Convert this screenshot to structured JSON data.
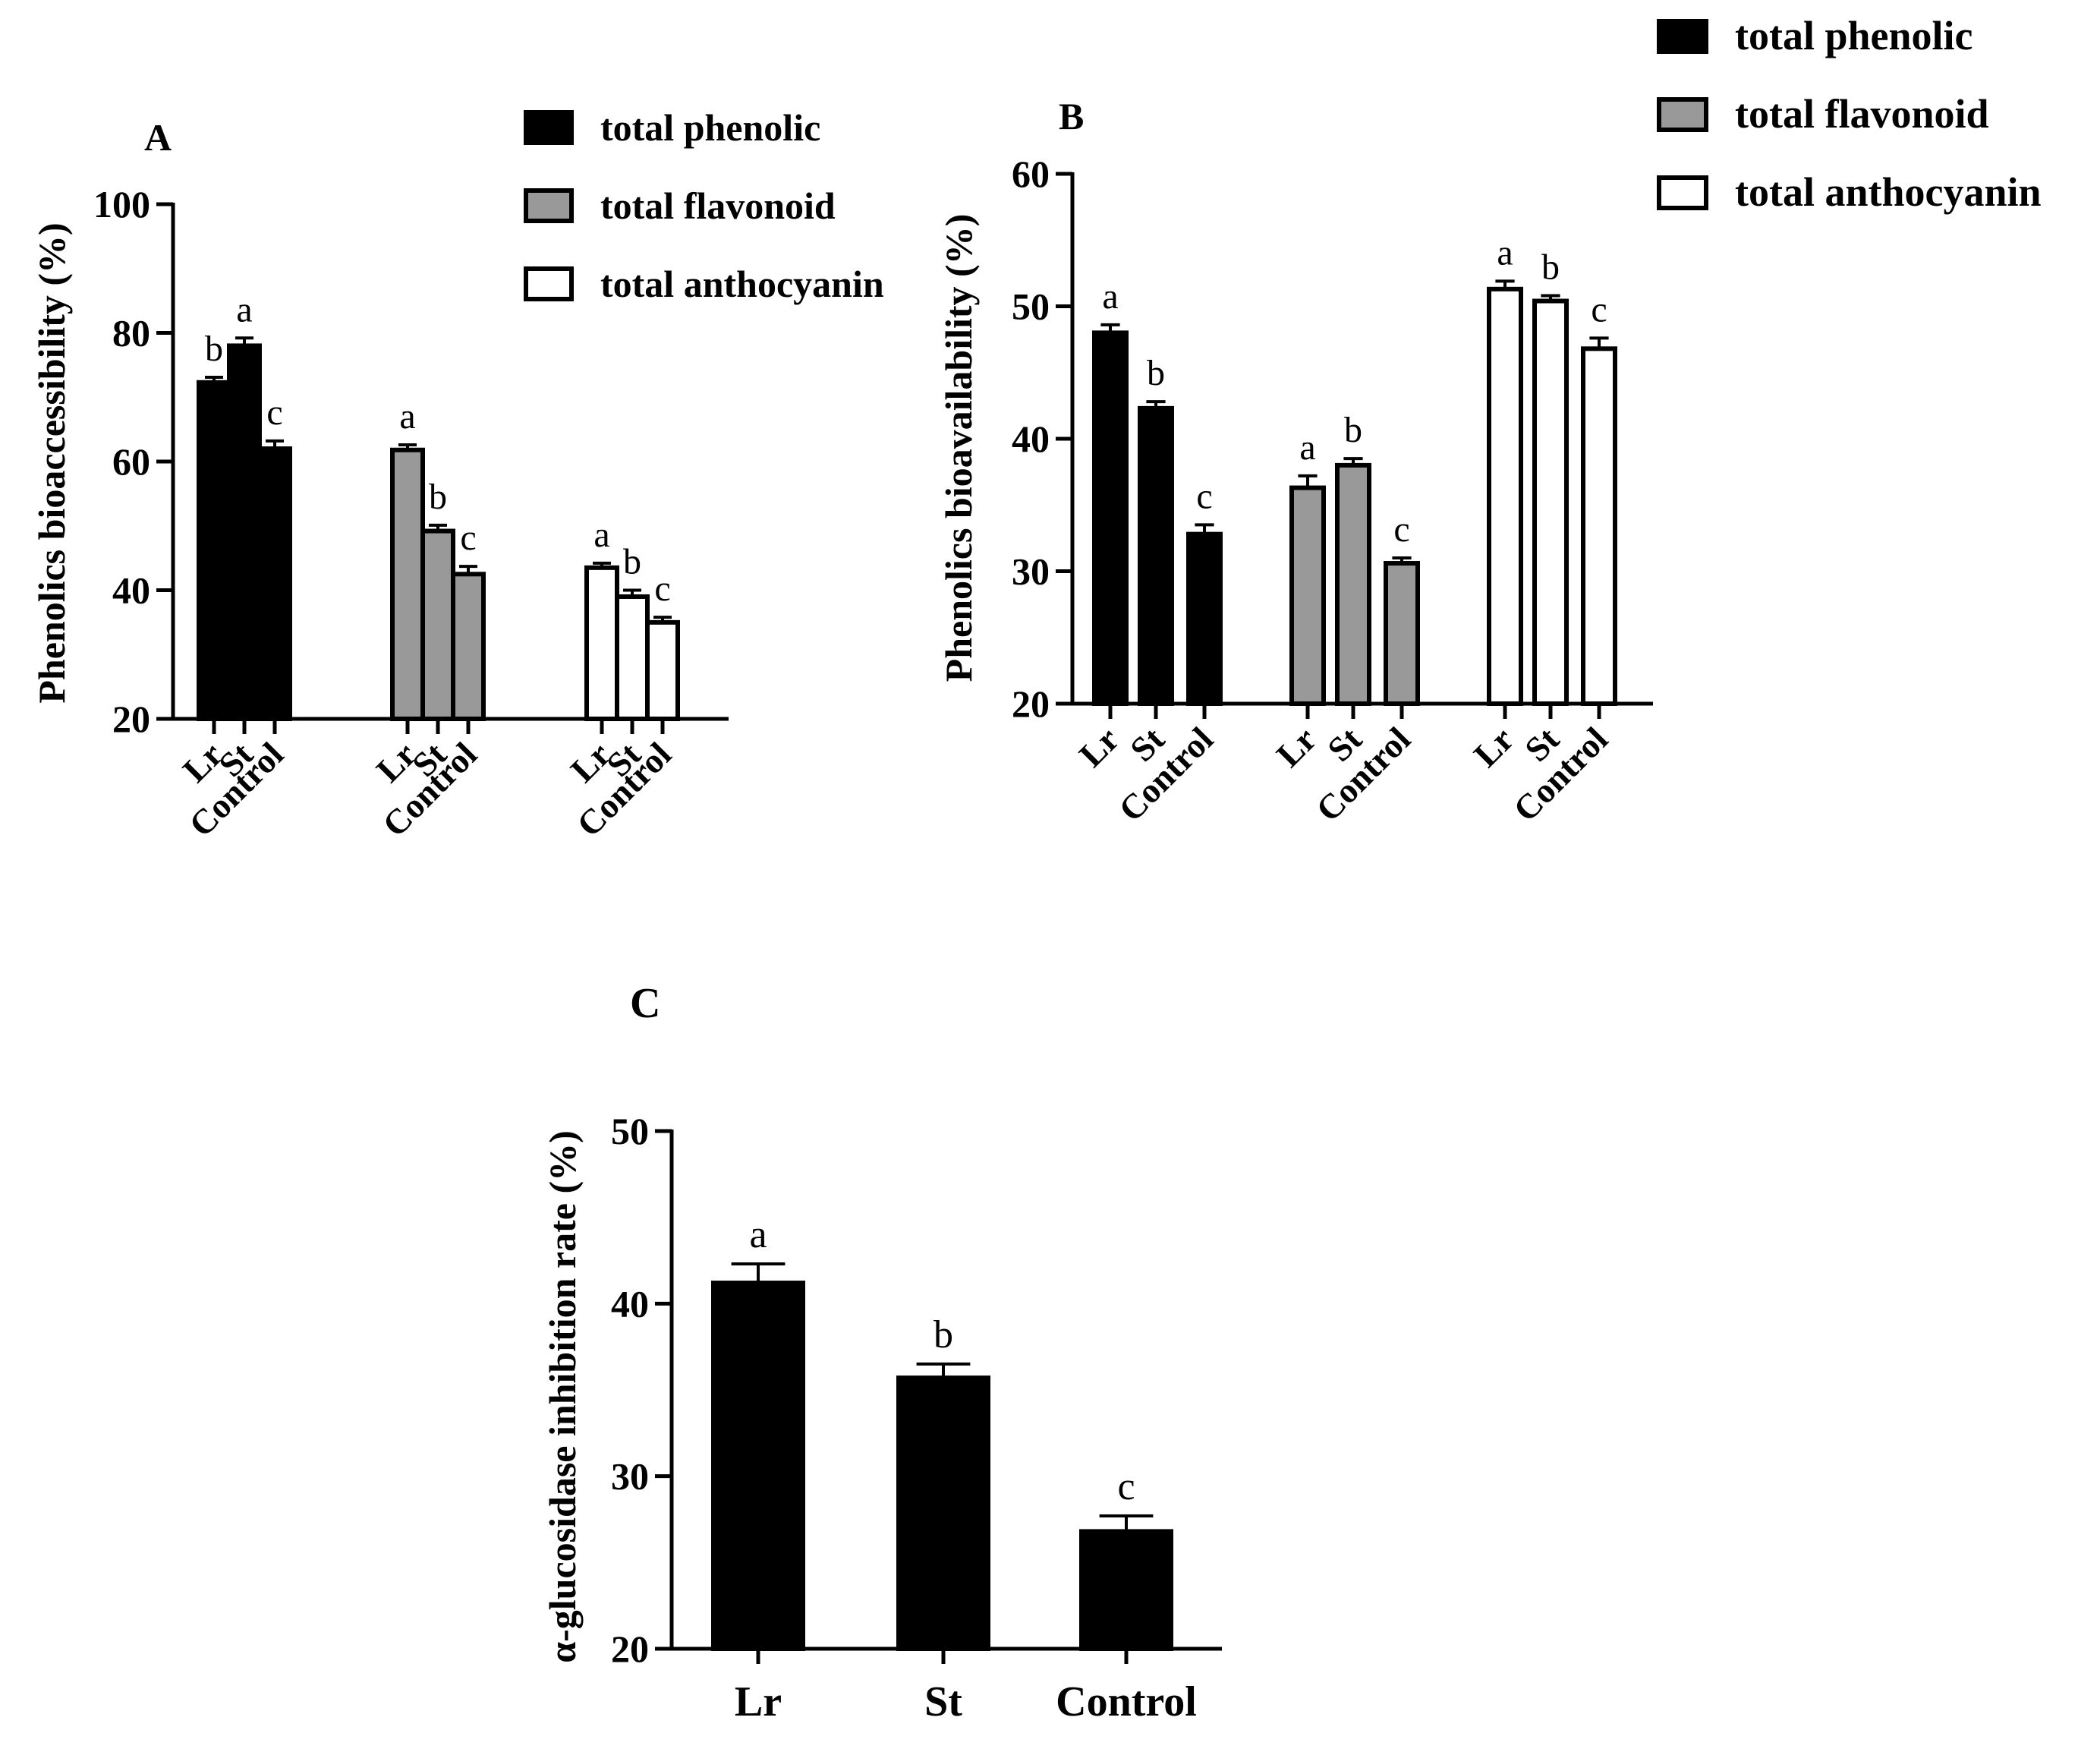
{
  "chart_data": [
    {
      "id": "A",
      "type": "bar",
      "panel_label": "A",
      "title": "",
      "xlabel": "",
      "ylabel": "Phenolics bioaccessibility (%)",
      "ylim": [
        20,
        100
      ],
      "yticks": [
        20,
        40,
        60,
        80,
        100
      ],
      "groups": [
        {
          "name": "total phenolic",
          "categories": [
            "Lr",
            "St",
            "Control"
          ],
          "values": [
            72.3,
            78.0,
            62.0
          ],
          "errors": [
            0.8,
            1.2,
            1.2
          ],
          "letters": [
            "b",
            "a",
            "c"
          ]
        },
        {
          "name": "total flavonoid",
          "categories": [
            "Lr",
            "St",
            "Control"
          ],
          "values": [
            61.8,
            49.2,
            42.5
          ],
          "errors": [
            0.8,
            0.9,
            1.2
          ],
          "letters": [
            "a",
            "b",
            "c"
          ]
        },
        {
          "name": "total anthocyanin",
          "categories": [
            "Lr",
            "St",
            "Control"
          ],
          "values": [
            43.5,
            39.0,
            35.0
          ],
          "errors": [
            0.7,
            1.0,
            0.8
          ],
          "letters": [
            "a",
            "b",
            "c"
          ]
        }
      ],
      "legend": [
        {
          "label": "total phenolic",
          "fill": "#000000"
        },
        {
          "label": "total flavonoid",
          "fill": "#999999"
        },
        {
          "label": "total anthocyanin",
          "fill": "#ffffff"
        }
      ]
    },
    {
      "id": "B",
      "type": "bar",
      "panel_label": "B",
      "title": "",
      "xlabel": "",
      "ylabel": "Phenolics bioavailability (%)",
      "ylim": [
        20,
        60
      ],
      "yticks": [
        20,
        30,
        40,
        50,
        60
      ],
      "groups": [
        {
          "name": "total phenolic",
          "categories": [
            "Lr",
            "St",
            "Control"
          ],
          "values": [
            48.0,
            42.3,
            32.8
          ],
          "errors": [
            0.6,
            0.5,
            0.7
          ],
          "letters": [
            "a",
            "b",
            "c"
          ]
        },
        {
          "name": "total flavonoid",
          "categories": [
            "Lr",
            "St",
            "Control"
          ],
          "values": [
            36.3,
            38.0,
            30.6
          ],
          "errors": [
            0.9,
            0.5,
            0.4
          ],
          "letters": [
            "a",
            "b",
            "c"
          ]
        },
        {
          "name": "total anthocyanin",
          "categories": [
            "Lr",
            "St",
            "Control"
          ],
          "values": [
            51.3,
            50.4,
            46.8
          ],
          "errors": [
            0.6,
            0.4,
            0.8
          ],
          "letters": [
            "a",
            "b",
            "c"
          ]
        }
      ],
      "legend": [
        {
          "label": "total phenolic",
          "fill": "#000000"
        },
        {
          "label": "total flavonoid",
          "fill": "#999999"
        },
        {
          "label": "total anthocyanin",
          "fill": "#ffffff"
        }
      ]
    },
    {
      "id": "C",
      "type": "bar",
      "panel_label": "C",
      "title": "",
      "xlabel": "",
      "ylabel": "α-glucosidase inhibition rate (%)",
      "ylim": [
        20,
        50
      ],
      "yticks": [
        20,
        30,
        40,
        50
      ],
      "groups": [
        {
          "name": "α-glucosidase inhibition",
          "categories": [
            "Lr",
            "St",
            "Control"
          ],
          "values": [
            41.2,
            35.7,
            26.8
          ],
          "errors": [
            1.1,
            0.8,
            0.9
          ],
          "letters": [
            "a",
            "b",
            "c"
          ]
        }
      ]
    }
  ],
  "colors": {
    "total phenolic": "#000000",
    "total flavonoid": "#999999",
    "total anthocyanin": "#ffffff",
    "α-glucosidase inhibition": "#000000"
  }
}
